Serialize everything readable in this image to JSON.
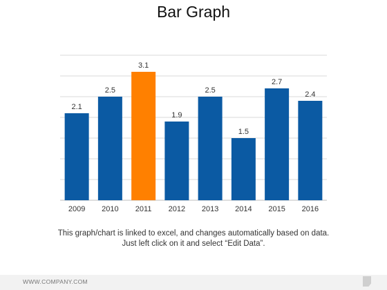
{
  "title": "Bar Graph",
  "caption": "This graph/chart is linked to excel, and changes automatically based on data. Just left click on it and select “Edit Data”.",
  "footer": {
    "text": "WWW.COMPANY.COM",
    "icon": "page-corner-icon"
  },
  "colors": {
    "bar": "#0b5aa3",
    "highlight": "#ff8000",
    "grid": "#d9d9d9"
  },
  "chart_data": {
    "type": "bar",
    "title": "Bar Graph",
    "xlabel": "",
    "ylabel": "",
    "categories": [
      "2009",
      "2010",
      "2011",
      "2012",
      "2013",
      "2014",
      "2015",
      "2016"
    ],
    "values": [
      2.1,
      2.5,
      3.1,
      1.9,
      2.5,
      1.5,
      2.7,
      2.4
    ],
    "data_labels": [
      "2.1",
      "2.5",
      "3.1",
      "1.9",
      "2.5",
      "1.5",
      "2.7",
      "2.4"
    ],
    "highlight_category": "2011",
    "ylim": [
      0,
      3.5
    ],
    "gridlines": true,
    "legend": "none"
  }
}
